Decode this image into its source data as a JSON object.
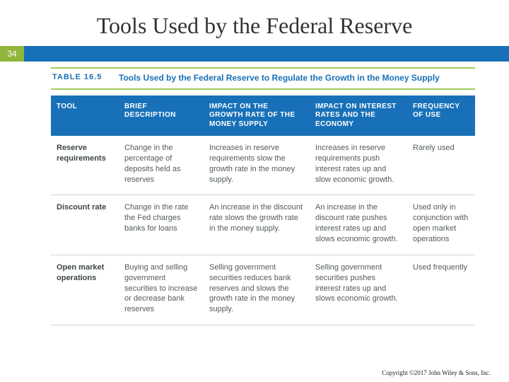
{
  "slide": {
    "title": "Tools Used by the Federal Reserve",
    "number": "34",
    "footer": "Copyright ©2017 John Wiley & Sons, Inc."
  },
  "colors": {
    "banner_blue": "#1871b8",
    "accent_green": "#92b53b",
    "rule_green": "#9fc959",
    "header_text": "#ffffff",
    "body_text": "#525a5f",
    "row_divider": "#cfd6da"
  },
  "table": {
    "label": "TABLE 16.5",
    "caption": "Tools Used by the Federal Reserve to Regulate the Growth in the Money Supply",
    "columns": [
      "TOOL",
      "BRIEF DESCRIPTION",
      "IMPACT ON THE GROWTH RATE OF THE MONEY SUPPLY",
      "IMPACT ON INTEREST RATES AND THE ECONOMY",
      "FREQUENCY OF USE"
    ],
    "col_widths_pct": [
      16,
      20,
      25,
      23,
      16
    ],
    "rows": [
      {
        "tool": "Reserve requirements",
        "desc": "Change in the percentage of deposits held as reserves",
        "supply": "Increases in reserve requirements slow the growth rate in the money supply.",
        "rates": "Increases in reserve requirements push interest rates up and slow economic growth.",
        "freq": "Rarely used"
      },
      {
        "tool": "Discount rate",
        "desc": "Change in the rate the Fed charges banks for loans",
        "supply": "An increase in the discount rate slows the growth rate in the money supply.",
        "rates": "An increase in the discount rate pushes interest rates up and slows economic growth.",
        "freq": "Used only in conjunction with open market operations"
      },
      {
        "tool": "Open market operations",
        "desc": "Buying and selling government securities to increase or decrease bank reserves",
        "supply": "Selling government securities reduces bank reserves and slows the growth rate in the money supply.",
        "rates": "Selling government securities pushes interest rates up and slows economic growth.",
        "freq": "Used frequently"
      }
    ]
  }
}
